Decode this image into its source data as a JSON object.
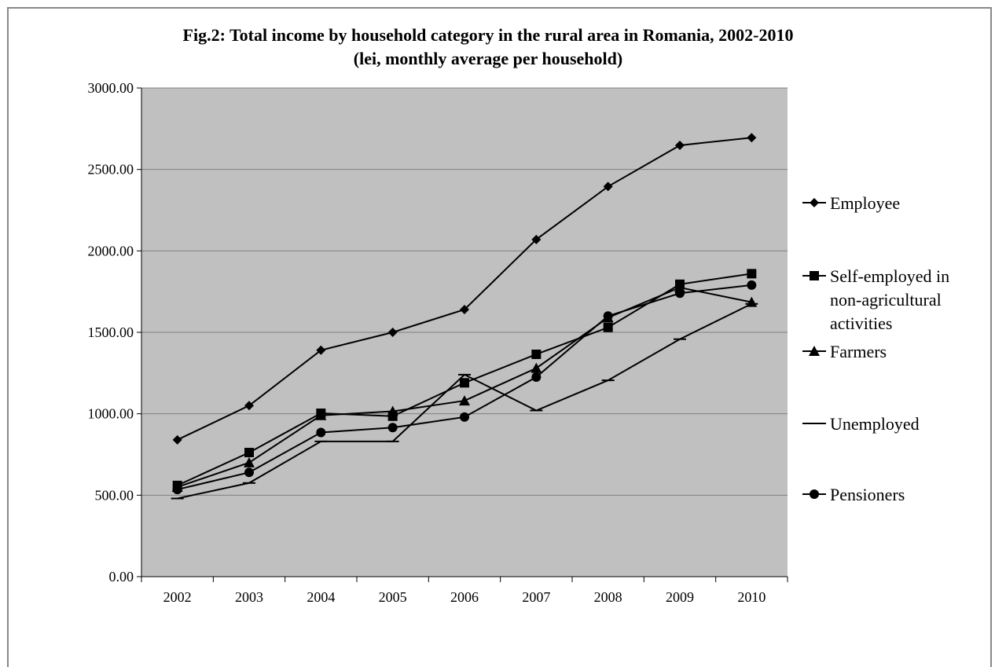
{
  "chart_data": {
    "type": "line",
    "title": "Fig.2: Total income by household category in the rural area in Romania, 2002-2010",
    "subtitle": "(lei, monthly average per household)",
    "x": [
      "2002",
      "2003",
      "2004",
      "2005",
      "2006",
      "2007",
      "2008",
      "2009",
      "2010"
    ],
    "y_ticks": [
      "0.00",
      "500.00",
      "1000.00",
      "1500.00",
      "2000.00",
      "2500.00",
      "3000.00"
    ],
    "ylim": [
      0,
      3000
    ],
    "grid": true,
    "legend_position": "right",
    "plot_background": "#c0c0c0",
    "line_color": "#000000",
    "series": [
      {
        "name": "Employee",
        "marker": "diamond",
        "values": [
          840,
          1050,
          1390,
          1500,
          1640,
          2070,
          2395,
          2648,
          2695
        ]
      },
      {
        "name": "Self-employed in non-agricultural activities",
        "legend_lines": [
          "Self-employed in",
          "non-agricultural",
          "activities"
        ],
        "marker": "square",
        "values": [
          560,
          762,
          1003,
          985,
          1190,
          1365,
          1530,
          1795,
          1860
        ]
      },
      {
        "name": "Farmers",
        "marker": "triangle",
        "values": [
          550,
          700,
          990,
          1015,
          1080,
          1280,
          1590,
          1775,
          1685
        ]
      },
      {
        "name": "Unemployed",
        "marker": "dash",
        "values": [
          480,
          575,
          830,
          830,
          1240,
          1020,
          1205,
          1458,
          1675
        ]
      },
      {
        "name": "Pensioners",
        "marker": "circle",
        "values": [
          535,
          640,
          885,
          915,
          980,
          1225,
          1600,
          1740,
          1790
        ]
      }
    ]
  }
}
